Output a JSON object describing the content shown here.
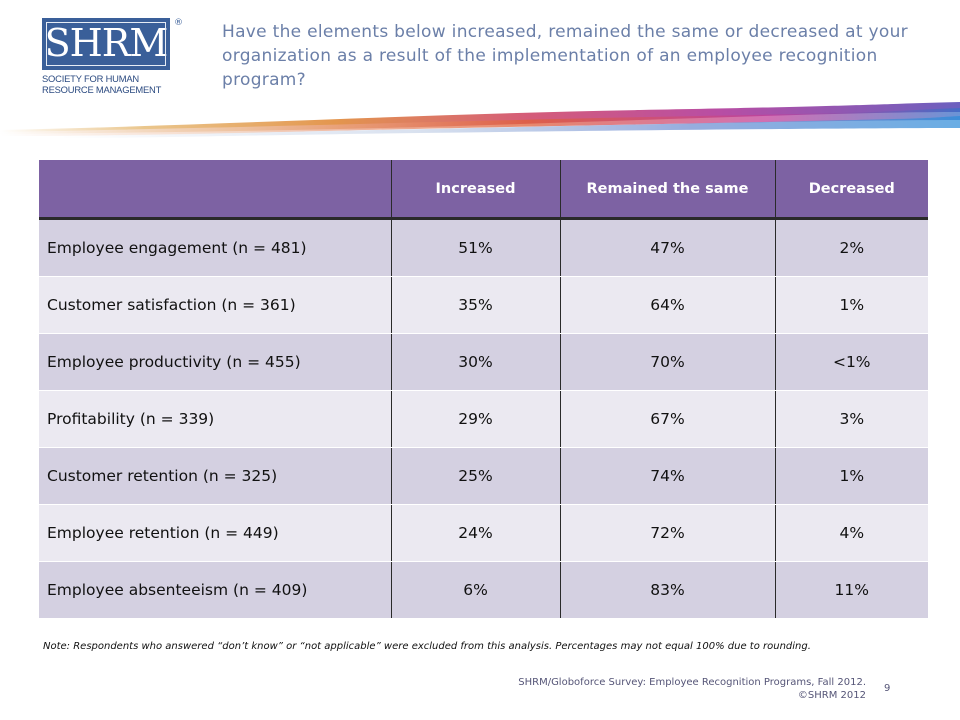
{
  "logo": {
    "letters": "SHRM",
    "reg_mark": "®",
    "line1": "SOCIETY FOR HUMAN",
    "line2": "RESOURCE MANAGEMENT"
  },
  "question": "Have the elements below increased, remained the same or decreased at your organization as a result of the implementation of an employee recognition program?",
  "table": {
    "headers": [
      "",
      "Increased",
      "Remained the same",
      "Decreased"
    ],
    "rows": [
      {
        "label": "Employee engagement (n = 481)",
        "increased": "51%",
        "same": "47%",
        "decreased": "2%"
      },
      {
        "label": "Customer satisfaction (n = 361)",
        "increased": "35%",
        "same": "64%",
        "decreased": "1%"
      },
      {
        "label": "Employee productivity (n = 455)",
        "increased": "30%",
        "same": "70%",
        "decreased": "<1%"
      },
      {
        "label": "Profitability (n = 339)",
        "increased": "29%",
        "same": "67%",
        "decreased": "3%"
      },
      {
        "label": "Customer retention (n = 325)",
        "increased": "25%",
        "same": "74%",
        "decreased": "1%"
      },
      {
        "label": "Employee retention (n = 449)",
        "increased": "24%",
        "same": "72%",
        "decreased": "4%"
      },
      {
        "label": "Employee absenteeism (n = 409)",
        "increased": "6%",
        "same": "83%",
        "decreased": "11%"
      }
    ]
  },
  "note": "Note: Respondents who answered “don’t know” or “not applicable” were excluded from this analysis. Percentages may not equal 100% due to rounding.",
  "source": {
    "line1": "SHRM/Globoforce Survey: Employee Recognition Programs, Fall 2012.",
    "line2": "©SHRM 2012"
  },
  "page_number": "9",
  "colors": {
    "header_purple": "#7d62a3",
    "row_dark": "#d4d0e1",
    "row_light": "#ebe9f1",
    "logo_blue": "#3a5f99",
    "question_text": "#6b7fa8"
  }
}
